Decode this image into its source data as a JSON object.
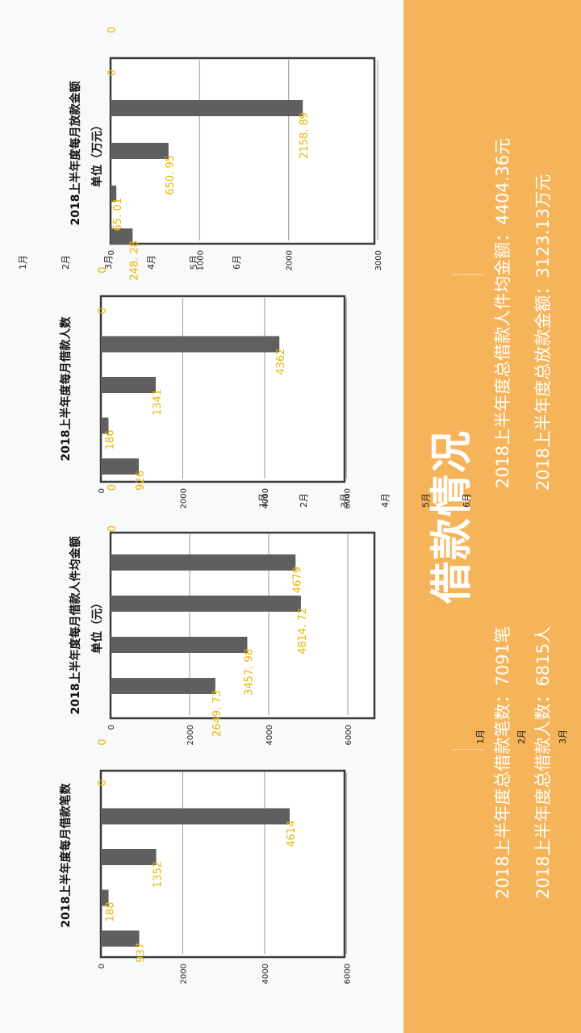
{
  "heading": "借款情况",
  "summary": [
    "2018上半年度总借款笔数：7091笔",
    "2018上半年度总借款人数：6815人",
    "2018上半年度总借款人件均金额：4404.36元",
    "2018上半年度总放款金额：3123.13万元"
  ],
  "colors": {
    "panel": "#f6b45a",
    "bar": "#5f5f5f",
    "label": "#e8b600"
  },
  "chart_data": [
    {
      "type": "bar",
      "title": "2018上半年度每月借款笔数",
      "categories": [
        "6月",
        "5月",
        "4月",
        "3月",
        "2月",
        "1月"
      ],
      "values": [
        937,
        188,
        1352,
        4614,
        0,
        0
      ],
      "ylim": [
        0,
        7000
      ],
      "yticks": [
        0,
        2000,
        4000,
        6000
      ],
      "grid": true
    },
    {
      "type": "bar",
      "title": "2018上半年度每月借款人件均金额",
      "subtitle": "单位（元）",
      "categories": [
        "6月",
        "5月",
        "4月",
        "3月",
        "2月",
        "1月"
      ],
      "values": [
        2649.73,
        3457.98,
        4814.72,
        4679,
        0,
        0
      ],
      "value_labels": [
        "2649.73",
        "3457.98",
        "4814.72",
        "4679",
        "0",
        "0"
      ],
      "ylim": [
        0,
        7000
      ],
      "yticks": [
        0,
        2000,
        4000,
        6000
      ],
      "grid": true
    },
    {
      "type": "bar",
      "title": "2018上半年度每月借款人数",
      "categories": [
        "6月",
        "5月",
        "4月",
        "3月",
        "2月",
        "1月"
      ],
      "values": [
        926,
        186,
        1341,
        4362,
        0,
        0
      ],
      "ylim": [
        0,
        7000
      ],
      "yticks": [
        0,
        2000,
        4000,
        6000
      ],
      "grid": true
    },
    {
      "type": "bar",
      "title": "2018上半年度每月放款金额",
      "subtitle": "单位（万元）",
      "categories": [
        "6月",
        "5月",
        "4月",
        "3月",
        "2月",
        "1月"
      ],
      "values": [
        248.28,
        65.01,
        650.95,
        2158.89,
        0,
        0
      ],
      "value_labels": [
        "248.28",
        "65.01",
        "650.95",
        "2158.89",
        "0",
        "0"
      ],
      "ylim": [
        0,
        3000
      ],
      "yticks": [
        0,
        1000,
        2000,
        3000
      ],
      "grid": true
    }
  ]
}
